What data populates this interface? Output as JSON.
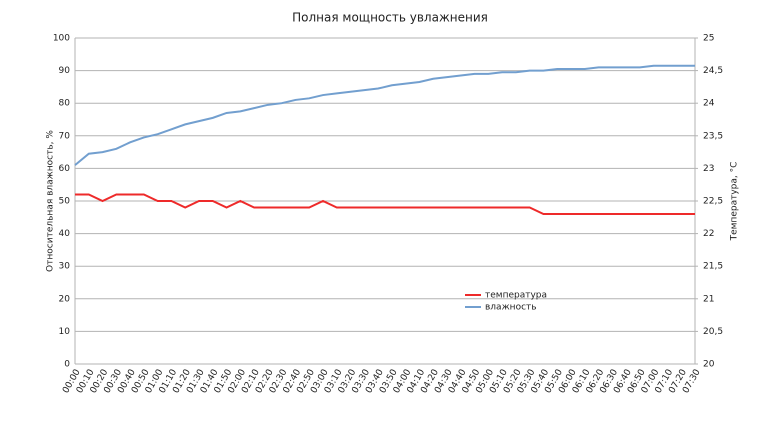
{
  "chart_data": {
    "type": "line",
    "title": "Полная мощность увлажнения",
    "y_label": "Относительная влажность, %",
    "y2_label": "Температура, °C",
    "categories": [
      "00:00",
      "00:10",
      "00:20",
      "00:30",
      "00:40",
      "00:50",
      "01:00",
      "01:10",
      "01:20",
      "01:30",
      "01:40",
      "01:50",
      "02:00",
      "02:10",
      "02:20",
      "02:30",
      "02:40",
      "02:50",
      "03:00",
      "03:10",
      "03:20",
      "03:30",
      "03:40",
      "03:50",
      "04:00",
      "04:10",
      "04:20",
      "04:30",
      "04:40",
      "04:50",
      "05:00",
      "05:10",
      "05:20",
      "05:30",
      "05:40",
      "05:50",
      "06:00",
      "06:10",
      "06:20",
      "06:30",
      "06:40",
      "06:50",
      "07:00",
      "07:10",
      "07:20",
      "07:30"
    ],
    "series": [
      {
        "name": "температура",
        "color": "#ee2a2a",
        "axis": "y2",
        "values": [
          22.6,
          22.6,
          22.5,
          22.6,
          22.6,
          22.6,
          22.5,
          22.5,
          22.4,
          22.5,
          22.5,
          22.4,
          22.5,
          22.4,
          22.4,
          22.4,
          22.4,
          22.4,
          22.5,
          22.4,
          22.4,
          22.4,
          22.4,
          22.4,
          22.4,
          22.4,
          22.4,
          22.4,
          22.4,
          22.4,
          22.4,
          22.4,
          22.4,
          22.4,
          22.3,
          22.3,
          22.3,
          22.3,
          22.3,
          22.3,
          22.3,
          22.3,
          22.3,
          22.3,
          22.3,
          22.3
        ]
      },
      {
        "name": "влажность",
        "color": "#729fcf",
        "values": [
          61,
          64.5,
          65,
          66,
          68,
          69.5,
          70.5,
          72,
          73.5,
          74.5,
          75.5,
          77,
          77.5,
          78.5,
          79.5,
          80,
          81,
          81.5,
          82.5,
          83,
          83.5,
          84,
          84.5,
          85.5,
          86,
          86.5,
          87.5,
          88,
          88.5,
          89,
          89,
          89.5,
          89.5,
          90,
          90,
          90.5,
          90.5,
          90.5,
          91,
          91,
          91,
          91,
          91.5,
          91.5,
          91.5,
          91.5
        ]
      }
    ],
    "ylim": [
      0,
      100
    ],
    "yticks": [
      0,
      10,
      20,
      30,
      40,
      50,
      60,
      70,
      80,
      90,
      100
    ],
    "y2lim": [
      20,
      25
    ],
    "y2ticks": [
      20,
      {
        "value": 20.5,
        "label": "20,5"
      },
      21,
      {
        "value": 21.5,
        "label": "21,5"
      },
      22,
      {
        "value": 22.5,
        "label": "22,5"
      },
      23,
      {
        "value": 23.5,
        "label": "23,5"
      },
      24,
      {
        "value": 24.5,
        "label": "24,5"
      },
      25
    ],
    "grid": true,
    "legend": "center"
  }
}
